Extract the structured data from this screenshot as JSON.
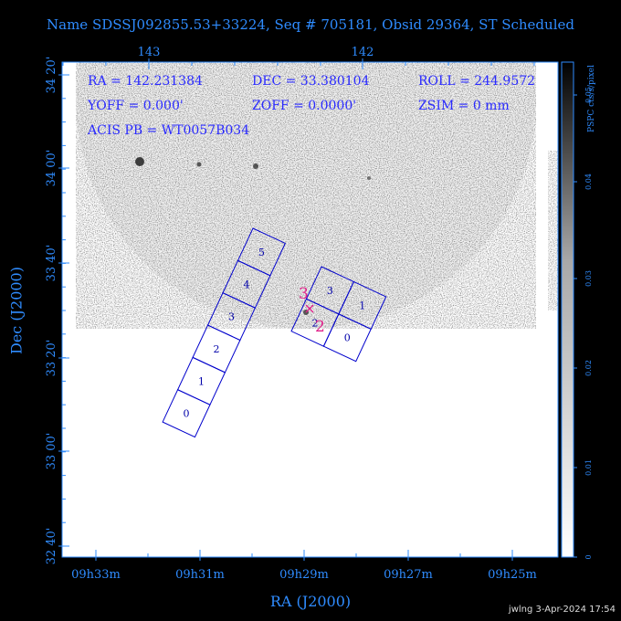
{
  "header": {
    "title": "Name SDSSJ092855.53+33224, Seq # 705181, Obsid 29364, ST Scheduled",
    "credit": "jwlng   3-Apr-2024 17:54"
  },
  "info": {
    "ra": "RA = 142.231384",
    "dec": "DEC = 33.380104",
    "roll": "ROLL = 244.9572",
    "yoff": "YOFF =    0.000'",
    "zoff": "ZOFF =   0.0000'",
    "zsim": "ZSIM = 0 mm",
    "acis": "ACIS PB = WT0057B034"
  },
  "chart_data": {
    "type": "image",
    "xlabel": "RA (J2000)",
    "ylabel": "Dec (J2000)",
    "x_ticks_bottom": [
      "09h33m",
      "09h31m",
      "09h29m",
      "09h27m",
      "09h25m"
    ],
    "x_ticks_top": [
      "143",
      "142"
    ],
    "y_ticks": [
      "34 20'",
      "34 00'",
      "33 40'",
      "33 20'",
      "33 00'",
      "32 40'"
    ],
    "colorbar": {
      "label": "PSPC cts/s/pixel",
      "ticks": [
        "0.05",
        "0.04",
        "0.03",
        "0.02",
        "0.01",
        "0"
      ]
    },
    "chips_i": [
      {
        "label": "0"
      },
      {
        "label": "1"
      },
      {
        "label": "2"
      },
      {
        "label": "3"
      }
    ],
    "chips_s": [
      {
        "label": "0"
      },
      {
        "label": "1"
      },
      {
        "label": "2"
      },
      {
        "label": "3"
      },
      {
        "label": "4"
      },
      {
        "label": "5"
      }
    ],
    "colors": {
      "axis": "#2f8cff",
      "chip_outline": "#0000cc",
      "chip_label": "#0000aa",
      "marker": "#e0208a",
      "info_text": "#2a2aff"
    }
  }
}
